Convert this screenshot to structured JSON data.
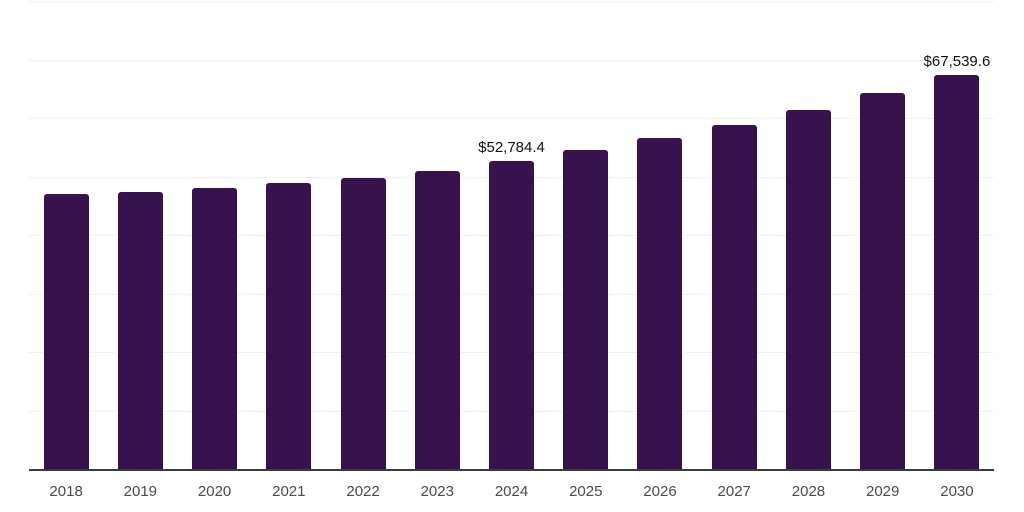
{
  "chart": {
    "background": "#ffffff",
    "bar_color": "#37124c",
    "grid_color": "#f0f0f1",
    "axis_color": "#3b3b3b",
    "tick_label_color": "#4b4b4b",
    "data_label_color": "#111111"
  },
  "chart_data": {
    "type": "bar",
    "title": "",
    "xlabel": "",
    "ylabel": "",
    "categories": [
      "2018",
      "2019",
      "2020",
      "2021",
      "2022",
      "2023",
      "2024",
      "2025",
      "2026",
      "2027",
      "2028",
      "2029",
      "2030"
    ],
    "values": [
      47250,
      47600,
      48200,
      49050,
      49900,
      51100,
      52784.4,
      54700,
      56750,
      59000,
      61500,
      64400,
      67539.6
    ],
    "ylim": [
      0,
      80000
    ],
    "gridline_step": 10000,
    "grid": true,
    "legend": false,
    "annotations": [
      {
        "category": "2024",
        "text": "$52,784.4"
      },
      {
        "category": "2030",
        "text": "$67,539.6"
      }
    ]
  }
}
